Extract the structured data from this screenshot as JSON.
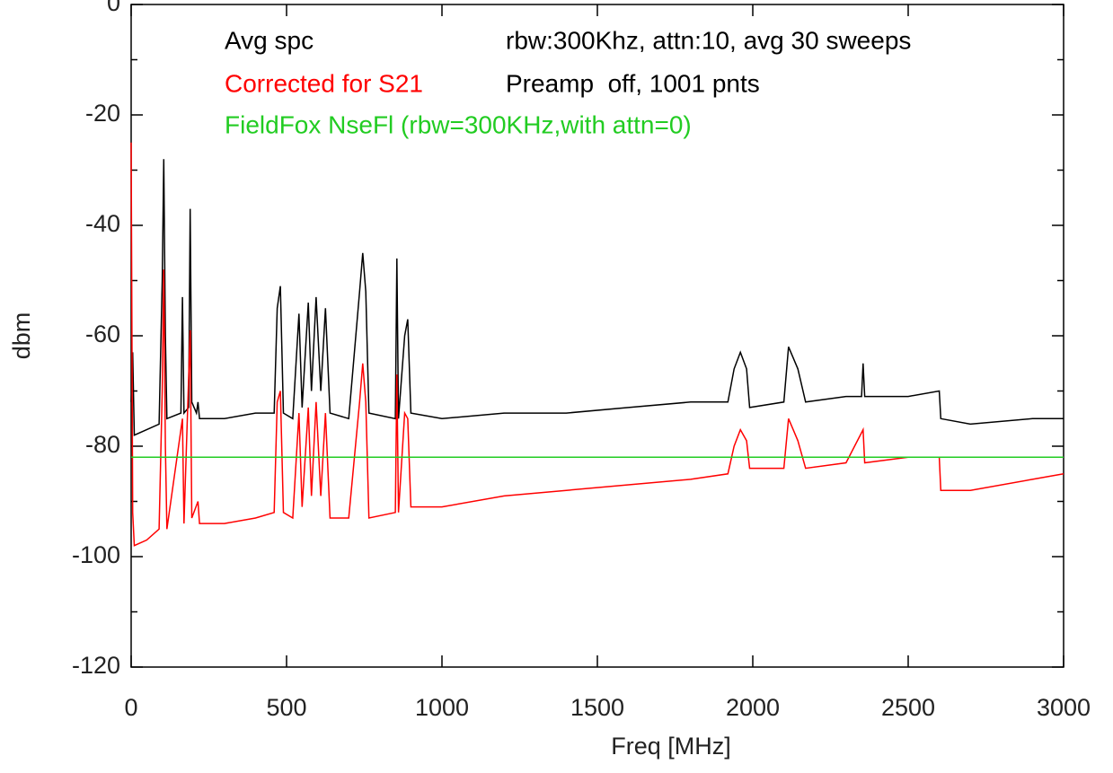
{
  "chart_data": {
    "type": "line",
    "x_label": "Freq [MHz]",
    "y_label": "dbm",
    "xlim": [
      0,
      3000
    ],
    "xticks": [
      0,
      500,
      1000,
      1500,
      2000,
      2500,
      3000
    ],
    "ylim": [
      -120,
      0
    ],
    "yticks": [
      -120,
      -100,
      -80,
      -60,
      -40,
      -20,
      0
    ],
    "yminorticks": [
      -110,
      -90,
      -70,
      -50,
      -30,
      -10
    ],
    "series": [
      {
        "name": "Avg spc",
        "color": "#000000",
        "x": [
          0,
          5,
          10,
          50,
          90,
          100,
          105,
          110,
          115,
          160,
          165,
          170,
          185,
          190,
          195,
          210,
          215,
          220,
          300,
          400,
          460,
          470,
          480,
          490,
          520,
          540,
          550,
          570,
          580,
          595,
          610,
          625,
          640,
          700,
          735,
          745,
          755,
          765,
          850,
          855,
          860,
          880,
          890,
          900,
          1000,
          1200,
          1400,
          1600,
          1800,
          1920,
          1940,
          1960,
          1980,
          1990,
          2100,
          2115,
          2130,
          2145,
          2170,
          2300,
          2350,
          2355,
          2360,
          2500,
          2600,
          2605,
          2700,
          2900,
          3000
        ],
        "values": [
          -72,
          -63,
          -78,
          -77,
          -76,
          -50,
          -28,
          -60,
          -75,
          -74,
          -53,
          -74,
          -73,
          -37,
          -72,
          -74,
          -72,
          -75,
          -75,
          -74,
          -74,
          -55,
          -51,
          -74,
          -75,
          -56,
          -73,
          -54,
          -70,
          -53,
          -70,
          -55,
          -74,
          -75,
          -52,
          -45,
          -52,
          -74,
          -75,
          -46,
          -75,
          -60,
          -57,
          -74,
          -75,
          -74,
          -74,
          -73,
          -72,
          -72,
          -66,
          -63,
          -66,
          -73,
          -72,
          -62,
          -64,
          -66,
          -72,
          -71,
          -71,
          -65,
          -71,
          -71,
          -70,
          -75,
          -76,
          -75,
          -75
        ]
      },
      {
        "name": "Corrected for S21",
        "color": "#ff0000",
        "x": [
          0,
          5,
          10,
          50,
          90,
          100,
          105,
          110,
          115,
          165,
          170,
          190,
          195,
          215,
          220,
          300,
          400,
          460,
          470,
          480,
          490,
          520,
          540,
          550,
          570,
          580,
          595,
          610,
          625,
          640,
          700,
          735,
          745,
          755,
          765,
          850,
          855,
          860,
          880,
          890,
          900,
          1000,
          1200,
          1400,
          1600,
          1800,
          1920,
          1940,
          1960,
          1980,
          1990,
          2100,
          2115,
          2130,
          2145,
          2170,
          2300,
          2355,
          2360,
          2500,
          2600,
          2605,
          2700,
          2900,
          3000
        ],
        "values": [
          -25,
          -92,
          -98,
          -97,
          -95,
          -70,
          -48,
          -80,
          -95,
          -75,
          -94,
          -59,
          -93,
          -90,
          -94,
          -94,
          -93,
          -92,
          -72,
          -70,
          -92,
          -93,
          -74,
          -91,
          -73,
          -89,
          -72,
          -89,
          -74,
          -93,
          -93,
          -72,
          -65,
          -72,
          -93,
          -92,
          -67,
          -92,
          -74,
          -75,
          -91,
          -91,
          -89,
          -88,
          -87,
          -86,
          -85,
          -80,
          -77,
          -79,
          -84,
          -84,
          -75,
          -77,
          -79,
          -84,
          -83,
          -77,
          -83,
          -82,
          -82,
          -88,
          -88,
          -86,
          -85
        ]
      },
      {
        "name": "FieldFox NseFl (rbw=300KHz,with attn=0)",
        "color": "#22cc22",
        "x": [
          0,
          3000
        ],
        "values": [
          -82,
          -82
        ]
      }
    ],
    "annotations": [
      {
        "text": "rbw:300Khz, attn:10, avg 30 sweeps",
        "color": "#000000"
      },
      {
        "text": "Preamp  off, 1001 pnts",
        "color": "#000000"
      }
    ]
  }
}
